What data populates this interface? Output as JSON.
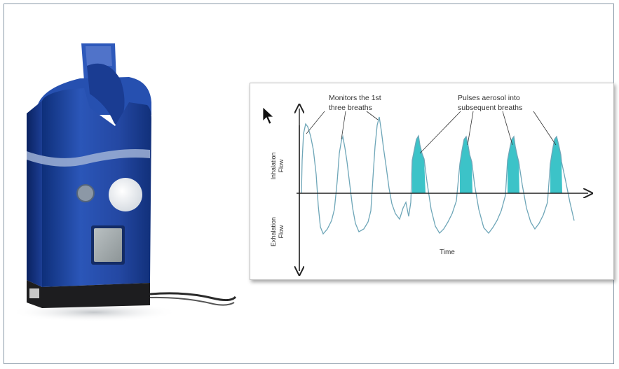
{
  "diagram": {
    "annotations": {
      "monitors_line1": "Monitors the 1st",
      "monitors_line2": "three breaths",
      "pulses_line1": "Pulses aerosol into",
      "pulses_line2": "subsequent breaths"
    },
    "axis": {
      "inhalation_line1": "Inhalation",
      "inhalation_line2": "Flow",
      "exhalation_line1": "Exhalation",
      "exhalation_line2": "Flow",
      "time": "Time"
    },
    "colors": {
      "waveform": "#6ea6b8",
      "pulse_fill": "#3cc3c8",
      "axis": "#222222"
    }
  }
}
